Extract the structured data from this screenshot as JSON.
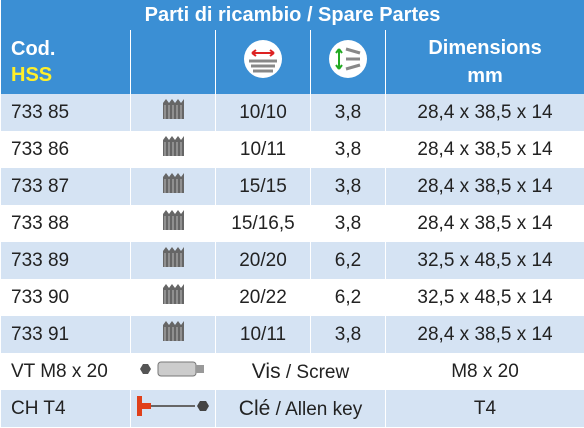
{
  "header": {
    "title": "Parti di ricambio / Spare Partes",
    "code": "Cod.",
    "code_sub": "HSS",
    "dimensions": "Dimensions",
    "dimensions_unit": "mm"
  },
  "rows": [
    [
      "733 85",
      "10/10",
      "3,8",
      "28,4 x 38,5 x 14"
    ],
    [
      "733 86",
      "10/11",
      "3,8",
      "28,4 x 38,5 x 14"
    ],
    [
      "733 87",
      "15/15",
      "3,8",
      "28,4 x 38,5 x 14"
    ],
    [
      "733 88",
      "15/16,5",
      "3,8",
      "28,4 x 38,5 x 14"
    ],
    [
      "733 89",
      "20/20",
      "6,2",
      "32,5 x 48,5 x 14"
    ],
    [
      "733 90",
      "20/22",
      "6,2",
      "32,5 x 48,5 x 14"
    ],
    [
      "733 91",
      "10/11",
      "3,8",
      "28,4 x 38,5 x 14"
    ]
  ],
  "accessories": [
    {
      "code": "VT M8 x 20",
      "name": "Vis",
      "translation": "/ Screw",
      "size": "M8 x 20"
    },
    {
      "code": "CH T4",
      "name": "Clé",
      "translation": "/ Allen key",
      "size": "T4"
    }
  ]
}
